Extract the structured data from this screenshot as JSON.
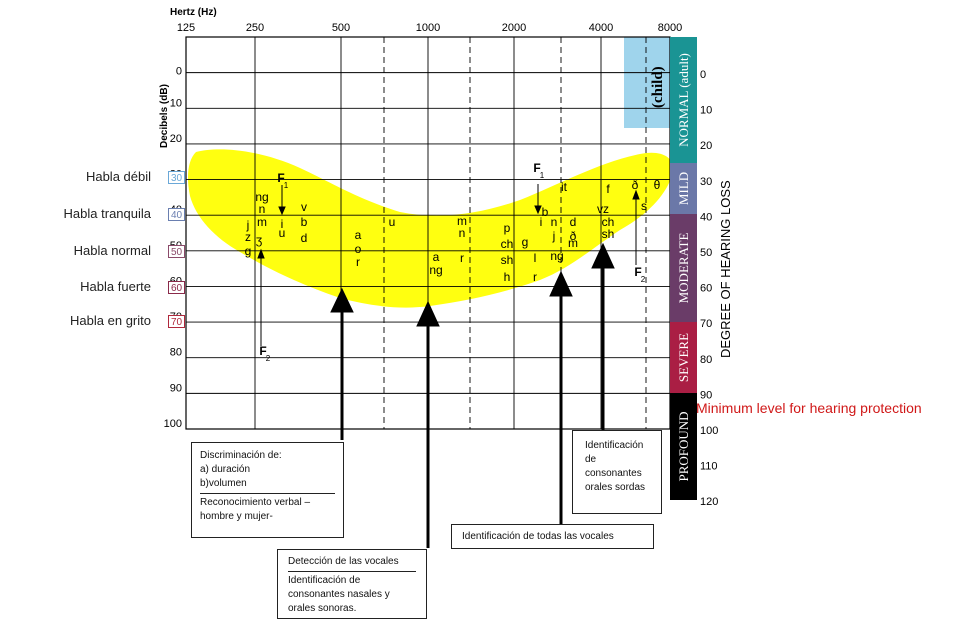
{
  "title": {
    "hertz": "Hertz (Hz)",
    "decibels": "Decibels (dB)",
    "degree": "DEGREE OF HEARING LOSS"
  },
  "freq_ticks": [
    "125",
    "250",
    "500",
    "1000",
    "2000",
    "4000",
    "8000"
  ],
  "db_ticks_left": [
    "0",
    "10",
    "20",
    "30",
    "40",
    "50",
    "60",
    "70",
    "80",
    "90",
    "100"
  ],
  "db_ticks_right": [
    "0",
    "10",
    "20",
    "30",
    "40",
    "50",
    "60",
    "70",
    "80",
    "90",
    "100",
    "110",
    "120"
  ],
  "speech_levels": [
    {
      "label": "Habla débil",
      "db": "30",
      "color": "#6aa8d8"
    },
    {
      "label": "Habla tranquila",
      "db": "40",
      "color": "#6a7fb0"
    },
    {
      "label": "Habla normal",
      "db": "50",
      "color": "#8b4a6a"
    },
    {
      "label": "Habla fuerte",
      "db": "60",
      "color": "#8a2a4a"
    },
    {
      "label": "Habla en grito",
      "db": "70",
      "color": "#b0283c"
    }
  ],
  "bands": [
    {
      "label": "NORMAL (adult)",
      "color": "#1a9494"
    },
    {
      "label": "MILD",
      "color": "#6b78a8"
    },
    {
      "label": "MODERATE",
      "color": "#6a3c68"
    },
    {
      "label": "SEVERE",
      "color": "#aa1e44"
    },
    {
      "label": "PROFOUND",
      "color": "#000000"
    }
  ],
  "child_label": "(child)",
  "child_color": "#9fd4ec",
  "banana_color": "#ffff10",
  "phonemes": [
    {
      "t": "ng"
    },
    {
      "t": "n"
    },
    {
      "t": "m"
    },
    {
      "t": "j"
    },
    {
      "t": "z"
    },
    {
      "t": "ʒ"
    },
    {
      "t": "g"
    },
    {
      "t": "i"
    },
    {
      "t": "u"
    },
    {
      "t": "v"
    },
    {
      "t": "b"
    },
    {
      "t": "d"
    },
    {
      "t": "a"
    },
    {
      "t": "o"
    },
    {
      "t": "r"
    },
    {
      "t": "u"
    },
    {
      "t": "a"
    },
    {
      "t": "ng"
    },
    {
      "t": "m"
    },
    {
      "t": "n"
    },
    {
      "t": "r"
    },
    {
      "t": "p"
    },
    {
      "t": "ch"
    },
    {
      "t": "sh"
    },
    {
      "t": "h"
    },
    {
      "t": "g"
    },
    {
      "t": "l"
    },
    {
      "t": "r"
    },
    {
      "t": "it"
    },
    {
      "t": "b"
    },
    {
      "t": "i"
    },
    {
      "t": "n"
    },
    {
      "t": "j"
    },
    {
      "t": "ng"
    },
    {
      "t": "d"
    },
    {
      "t": "ð"
    },
    {
      "t": "m"
    },
    {
      "t": "f"
    },
    {
      "t": "vz"
    },
    {
      "t": "ch"
    },
    {
      "t": "sh"
    },
    {
      "t": "ð"
    },
    {
      "t": "θ"
    },
    {
      "t": "s"
    },
    {
      "t": "F"
    },
    {
      "t": "1"
    },
    {
      "t": "F"
    },
    {
      "t": "1"
    },
    {
      "t": "F"
    },
    {
      "t": "2"
    },
    {
      "t": "F"
    },
    {
      "t": "2"
    }
  ],
  "min_level": "Minimum level for hearing protection",
  "boxes": {
    "discrimination": {
      "l1": "Discriminación de:",
      "l2": "a) duración",
      "l3": "b)volumen",
      "l4": "Reconocimiento verbal –",
      "l5": "hombre y mujer-"
    },
    "vowels": {
      "l1": "Detección de las vocales",
      "l2": "Identificación de",
      "l3": "consonantes nasales y",
      "l4": "orales sonoras."
    },
    "all_vowels": {
      "l1": "Identificación de  todas las vocales"
    },
    "voiceless": {
      "l1": "Identificación",
      "l2": "de",
      "l3": "consonantes",
      "l4": "orales sordas"
    }
  }
}
